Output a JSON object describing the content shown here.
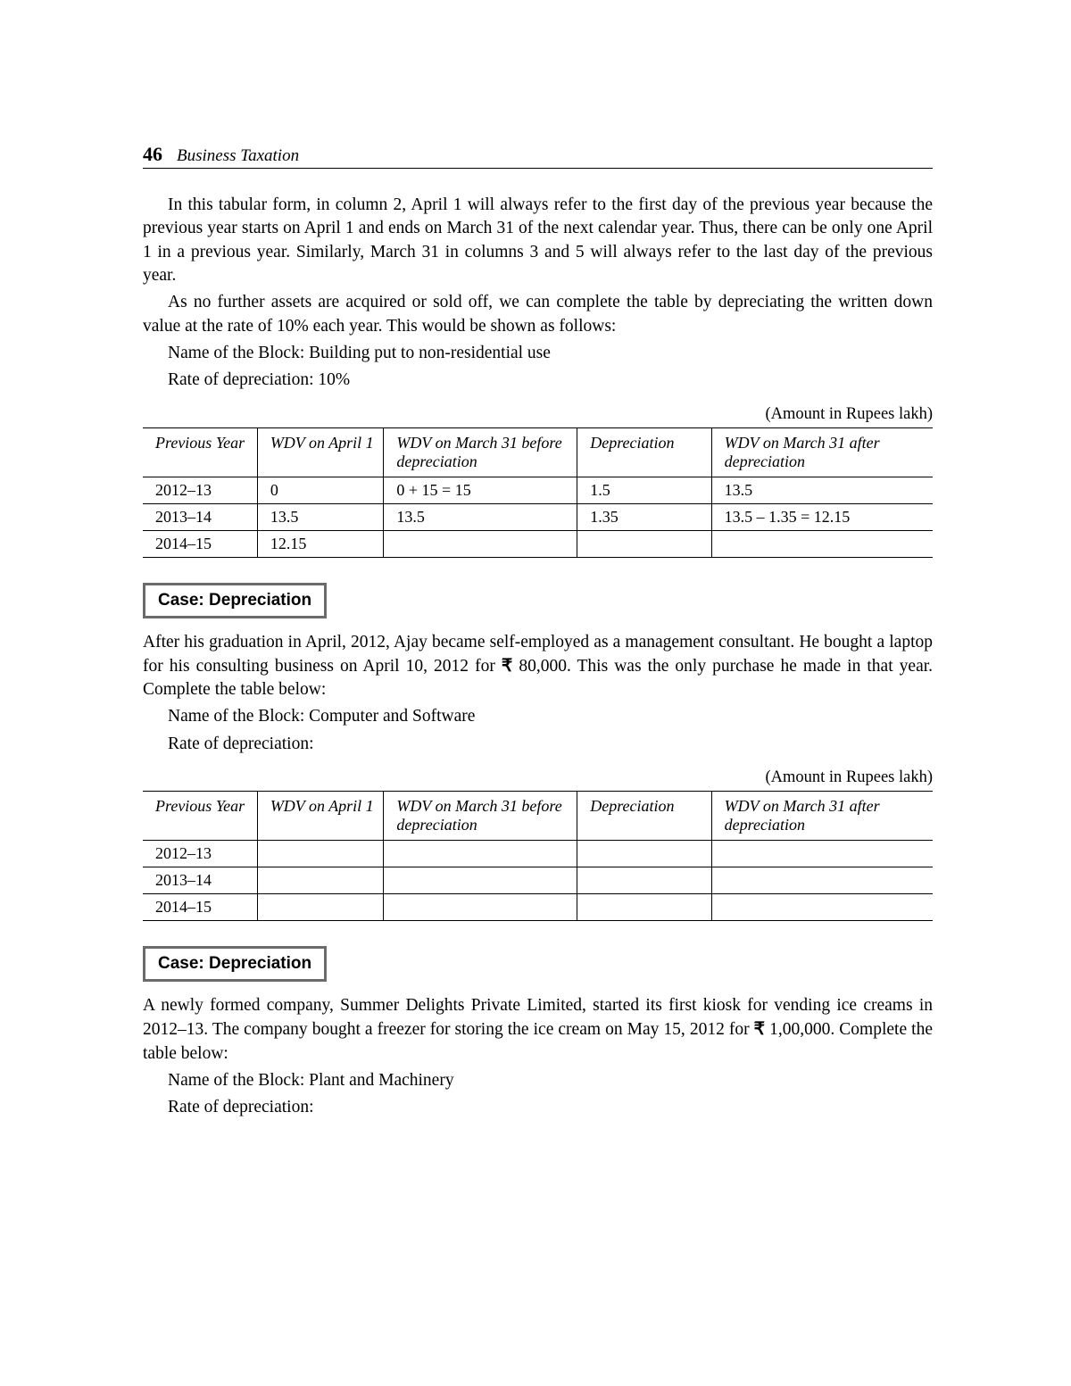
{
  "header": {
    "page_number": "46",
    "book_title": "Business Taxation"
  },
  "para1": "In this tabular form, in column 2, April 1 will always refer to the first day of the previous year because the previous year starts on April 1 and ends on March 31 of the next calendar year. Thus, there can be only one April 1 in a previous year. Similarly, March 31 in columns 3 and 5 will always refer to the last day of the previous year.",
  "para2": "As no further assets are acquired or sold off, we can complete the table by depreciating the written down value at the rate of 10% each year. This would be shown as follows:",
  "block1_name": "Name of the Block: Building put to non-residential use",
  "block1_rate": "Rate of depreciation: 10%",
  "unit_note": "(Amount in Rupees lakh)",
  "table_headers": {
    "c1": "Previous Year",
    "c2": "WDV on April 1",
    "c3": "WDV on March 31 before depreciation",
    "c4": "Depreciation",
    "c5": "WDV on March 31 after depreciation"
  },
  "table1_rows": [
    [
      "2012–13",
      "0",
      "0 + 15 = 15",
      "1.5",
      "13.5"
    ],
    [
      "2013–14",
      "13.5",
      "13.5",
      "1.35",
      "13.5 – 1.35 = 12.15"
    ],
    [
      "2014–15",
      "12.15",
      "",
      "",
      ""
    ]
  ],
  "case_label": "Case: Depreciation",
  "case1_text_a": "After his graduation in April, 2012, Ajay became self-employed as a management consultant. He bought a laptop for his consulting business on April 10, 2012 for ",
  "case1_amount": "80,000",
  "case1_text_b": ". This was the only purchase he made in that year. Complete the table below:",
  "block2_name": "Name of the Block: Computer and Software",
  "block2_rate": "Rate of depreciation:",
  "table2_rows": [
    [
      "2012–13",
      "",
      "",
      "",
      ""
    ],
    [
      "2013–14",
      "",
      "",
      "",
      ""
    ],
    [
      "2014–15",
      "",
      "",
      "",
      ""
    ]
  ],
  "case2_text_a": "A newly formed company, Summer Delights Private Limited, started its first kiosk for vending ice creams in 2012–13. The company bought a freezer for storing the ice cream on May 15, 2012 for ",
  "case2_amount": "1,00,000",
  "case2_text_b": ". Complete the table below:",
  "block3_name": "Name of the Block: Plant and Machinery",
  "block3_rate": "Rate of depreciation:"
}
